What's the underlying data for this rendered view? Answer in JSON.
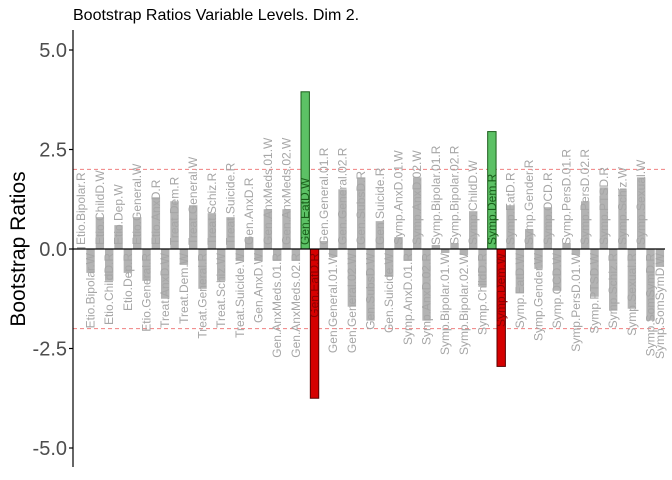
{
  "chart_data": {
    "type": "bar",
    "title": "Bootstrap Ratios Variable Levels. Dim 2.",
    "xlabel": "",
    "ylabel": "Bootstrap Ratios",
    "ylim": [
      -5.5,
      5.5
    ],
    "yticks": [
      "-5.0",
      "-2.5",
      "0.0",
      "2.5",
      "5.0"
    ],
    "ytick_values": [
      -5,
      -2.5,
      0,
      2.5,
      5
    ],
    "threshold": 2,
    "grid": false,
    "colors": {
      "nonsig": "#b3b3b3",
      "positive_sig": "#5cc165",
      "positive_sig_border": "#1a5e1a",
      "negative_sig": "#d50000",
      "negative_sig_border": "#5a0000",
      "threshold_line": "#f08080",
      "axis": "#000000",
      "nonsig_label": "#a6a6a6",
      "pos_label": "#1a5e1a",
      "neg_label": "#8b0000"
    },
    "categories": [
      "Etio.Bipolar.R",
      "Etio.Bipolar.W",
      "Etio.ChildD.W",
      "Etio.ChildD.R",
      "Etio.Dep.W",
      "Etio.Dep.R",
      "Etio.General.W",
      "Etio.General.R",
      "Etio.AnxD.R",
      "Treat.AnxD.W",
      "Treat.Dem.R",
      "Treat.Dem.W",
      "Treat.General.W",
      "Treat.General.R",
      "Treat.Schiz.R",
      "Treat.Schiz.W",
      "Treat.Suicide.R",
      "Treat.Suicide.W",
      "Gen.AnxD.R",
      "Gen.AnxD.W",
      "Gen.AnxMeds.01.W",
      "Gen.AnxMeds.01.R",
      "Gen.AnxMeds.02.W",
      "Gen.AnxMeds.02.R",
      "Gen.EatD.W",
      "Gen.EatD.R",
      "Gen.General.01.R",
      "Gen.General.01.W",
      "Gen.General.02.R",
      "Gen.General.02.W",
      "Gen.SubsD.R",
      "Gen.SubsD.W",
      "Gen.Suicide.R",
      "Gen.Suicide.W",
      "Symp.AnxD.01.W",
      "Symp.AnxD.01.R",
      "Symp.AnxD.02.W",
      "Symp.AnxD.02.R",
      "Symp.Bipolar.01.R",
      "Symp.Bipolar.01.W",
      "Symp.Bipolar.02.R",
      "Symp.Bipolar.02.W",
      "Symp.ChildD.W",
      "Symp.ChildD.R",
      "Symp.Dem.R",
      "Symp.Dem.W",
      "Symp.EatD.R",
      "Symp.EatD.W",
      "Symp.Gender.R",
      "Symp.Gender.W",
      "Symp.OCD.R",
      "Symp.OCD.W",
      "Symp.PersD.01.R",
      "Symp.PersD.01.W",
      "Symp.PersD.02.R",
      "Symp.PTSD.W",
      "Symp.PTSD.R",
      "Symp.Schiz.R",
      "Symp.Schiz.W",
      "Symp.Sexual.R",
      "Symp.Sexual.W",
      "Symp.SomSymD.R",
      "Symp.SomSymD.W"
    ],
    "values": [
      0.05,
      -0.6,
      0.8,
      -0.8,
      0.6,
      -0.6,
      0.8,
      -0.8,
      1.3,
      -1.25,
      1.2,
      -0.4,
      1.1,
      -1.0,
      0.9,
      -0.8,
      0.8,
      -0.3,
      0.3,
      -0.3,
      1.0,
      -0.3,
      1.0,
      -0.3,
      3.95,
      -3.75,
      0.2,
      -0.2,
      1.5,
      -1.45,
      1.8,
      -1.8,
      0.7,
      -0.7,
      0.3,
      -0.3,
      1.8,
      -1.8,
      0.1,
      -0.1,
      0.15,
      -0.15,
      0.95,
      -0.95,
      2.95,
      -2.95,
      1.1,
      -1.1,
      0.5,
      -0.5,
      1.05,
      -1.05,
      0.15,
      -0.15,
      1.2,
      -1.2,
      1.55,
      -1.55,
      1.5,
      -1.5,
      1.8,
      -1.8,
      0.45
    ],
    "signs_of_last": -0.45,
    "label_note": ""
  }
}
